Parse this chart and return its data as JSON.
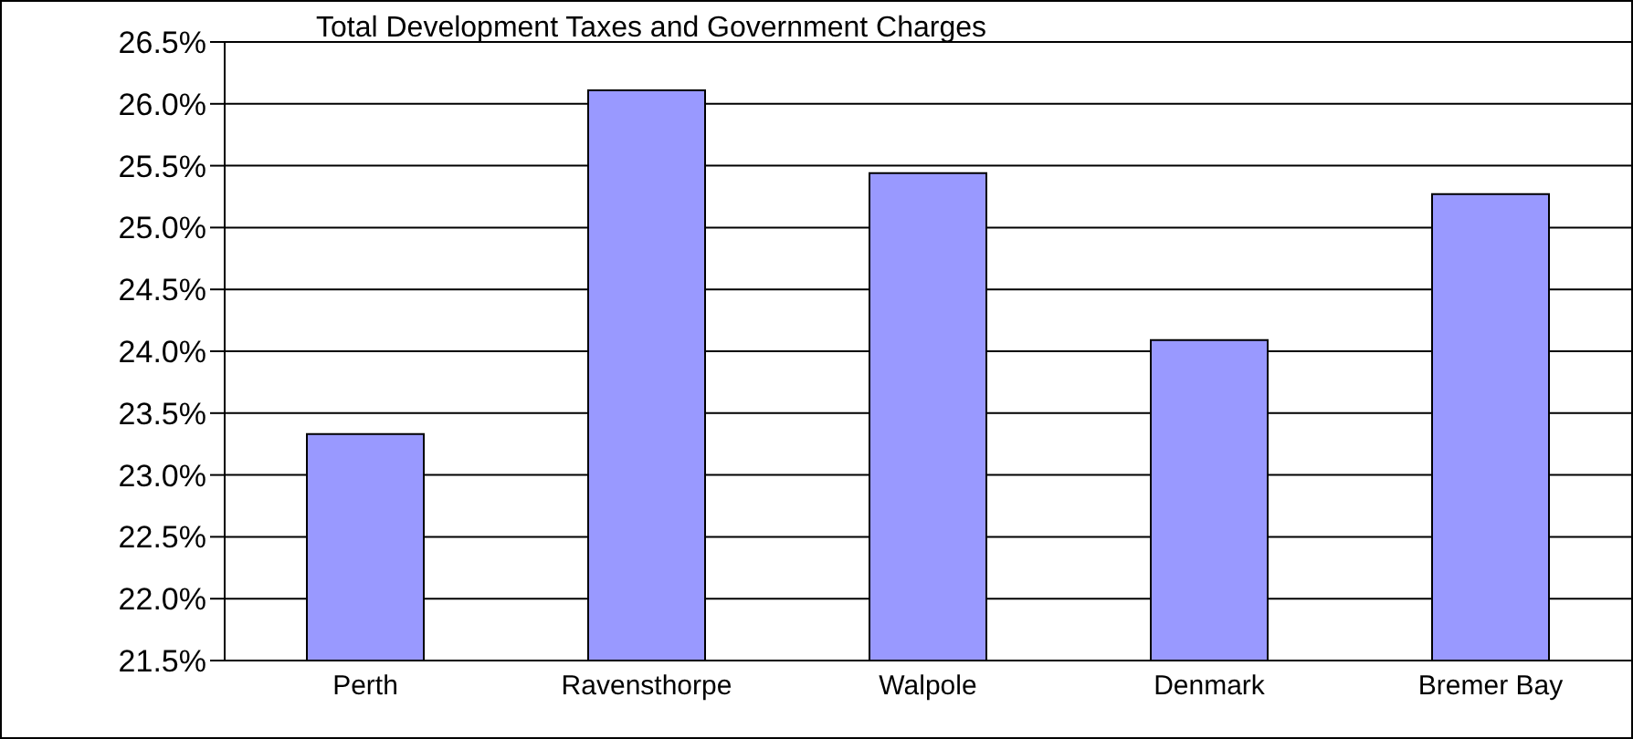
{
  "chart_data": {
    "type": "bar",
    "title": "Total Development Taxes and Government Charges",
    "categories": [
      "Perth",
      "Ravensthorpe",
      "Walpole",
      "Denmark",
      "Bremer Bay"
    ],
    "values": [
      23.33,
      26.11,
      25.44,
      24.09,
      25.27
    ],
    "color": "#9999ff",
    "ylim": [
      21.5,
      26.5
    ],
    "yticks": [
      {
        "value": 21.5,
        "label": "21.5%"
      },
      {
        "value": 22,
        "label": "22.0%"
      },
      {
        "value": 22.5,
        "label": "22.5%"
      },
      {
        "value": 23,
        "label": "23.0%"
      },
      {
        "value": 23.5,
        "label": "23.5%"
      },
      {
        "value": 24,
        "label": "24.0%"
      },
      {
        "value": 24.5,
        "label": "24.5%"
      },
      {
        "value": 25,
        "label": "25.0%"
      },
      {
        "value": 25.5,
        "label": "25.5%"
      },
      {
        "value": 26,
        "label": "26.0%"
      },
      {
        "value": 26.5,
        "label": "26.5%"
      }
    ],
    "grid": "y",
    "legend": false
  }
}
